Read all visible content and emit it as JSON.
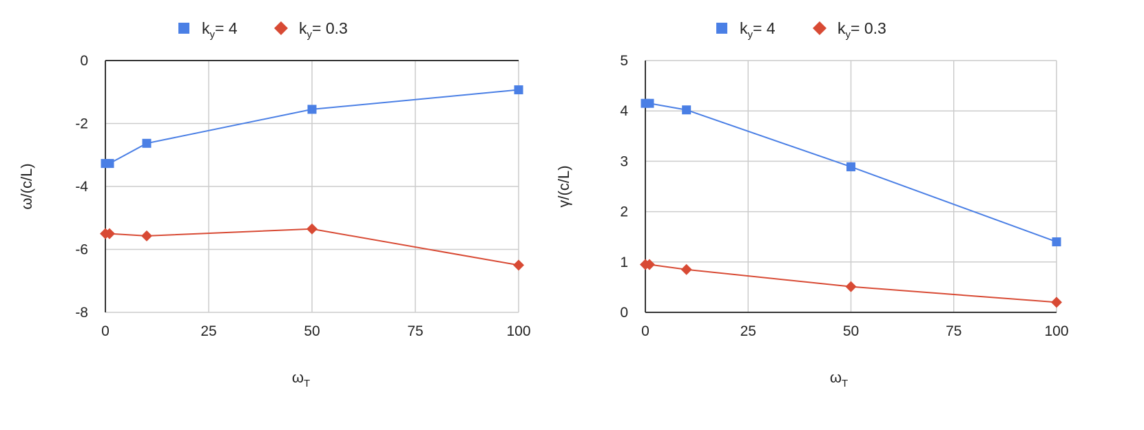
{
  "colors": {
    "blue": "#4a7fe5",
    "red": "#d84a34",
    "grid": "#cccccc",
    "axis": "#333333"
  },
  "chart_data": [
    {
      "type": "line",
      "xlabel": {
        "base": "ω",
        "sub": "T"
      },
      "ylabel": "ω/(c/L)",
      "xlim": [
        0,
        100
      ],
      "ylim": [
        -8,
        0
      ],
      "xticks": [
        0,
        25,
        50,
        75,
        100
      ],
      "yticks": [
        0,
        -2,
        -4,
        -6,
        -8
      ],
      "grid": true,
      "legend": "top-center",
      "series": [
        {
          "label_base": "k",
          "label_sub": "y",
          "label_rest": "= 4",
          "marker": "square",
          "color": "#4a7fe5",
          "x": [
            0,
            1,
            10,
            50,
            100
          ],
          "y": [
            -3.27,
            -3.27,
            -2.63,
            -1.55,
            -0.93
          ]
        },
        {
          "label_base": "k",
          "label_sub": "y",
          "label_rest": "= 0.3",
          "marker": "diamond",
          "color": "#d84a34",
          "x": [
            0,
            1,
            10,
            50,
            100
          ],
          "y": [
            -5.5,
            -5.5,
            -5.57,
            -5.35,
            -6.5
          ]
        }
      ]
    },
    {
      "type": "line",
      "xlabel": {
        "base": "ω",
        "sub": "T"
      },
      "ylabel": "γ/(c/L)",
      "xlim": [
        0,
        100
      ],
      "ylim": [
        0,
        5
      ],
      "xticks": [
        0,
        25,
        50,
        75,
        100
      ],
      "yticks": [
        5,
        4,
        3,
        2,
        1,
        0
      ],
      "grid": true,
      "legend": "top-center",
      "series": [
        {
          "label_base": "k",
          "label_sub": "y",
          "label_rest": "= 4",
          "marker": "square",
          "color": "#4a7fe5",
          "x": [
            0,
            1,
            10,
            50,
            100
          ],
          "y": [
            4.15,
            4.15,
            4.02,
            2.89,
            1.4
          ]
        },
        {
          "label_base": "k",
          "label_sub": "y",
          "label_rest": "= 0.3",
          "marker": "diamond",
          "color": "#d84a34",
          "x": [
            0,
            1,
            10,
            50,
            100
          ],
          "y": [
            0.95,
            0.95,
            0.85,
            0.51,
            0.2
          ]
        }
      ]
    }
  ]
}
